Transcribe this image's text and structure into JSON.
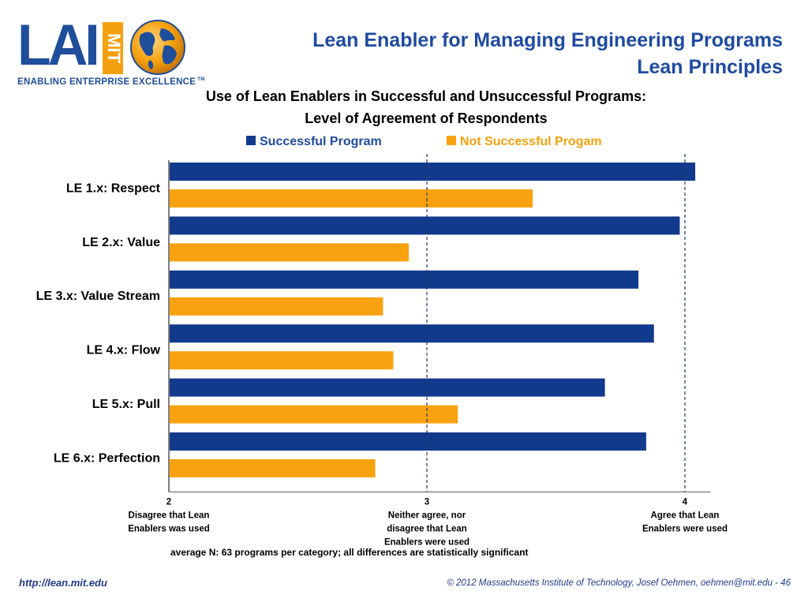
{
  "header": {
    "title_line1": "Lean Enabler for Managing Engineering Programs",
    "title_line2": "Lean Principles"
  },
  "logo": {
    "letters": "LAI",
    "mit": "MIT",
    "tagline": "ENABLING ENTERPRISE EXCELLENCE",
    "trademark": "TM"
  },
  "footer": {
    "url": "http://lean.mit.edu",
    "copyright": "© 2012 Massachusetts Institute of Technology, Josef Oehmen, oehmen@mit.edu - 46"
  },
  "colors": {
    "successful": "#123a8c",
    "not_successful": "#f9a20f",
    "title": "#1f4ba0"
  },
  "chart_data": {
    "type": "bar",
    "orientation": "horizontal",
    "title_line1": "Use of Lean Enablers in Successful and Unsuccessful Programs:",
    "title_line2": "Level of Agreement of Respondents",
    "categories": [
      "LE 1.x: Respect",
      "LE 2.x: Value",
      "LE 3.x: Value Stream",
      "LE 4.x: Flow",
      "LE 5.x: Pull",
      "LE 6.x: Perfection"
    ],
    "series": [
      {
        "name": "Successful Program",
        "values": [
          4.04,
          3.98,
          3.82,
          3.88,
          3.69,
          3.85
        ]
      },
      {
        "name": "Not Successful Progam",
        "values": [
          3.41,
          2.93,
          2.83,
          2.87,
          3.12,
          2.8
        ]
      }
    ],
    "xlim": [
      2,
      4.1
    ],
    "ticks": [
      {
        "value": 2,
        "label": "2",
        "desc": [
          "Disagree that Lean",
          "Enablers was used"
        ]
      },
      {
        "value": 3,
        "label": "3",
        "desc": [
          "Neither agree, nor",
          "disagree that Lean",
          "Enablers were used"
        ]
      },
      {
        "value": 4,
        "label": "4",
        "desc": [
          "Agree that Lean",
          "Enablers were used"
        ]
      }
    ],
    "reference_lines": [
      3,
      4
    ],
    "legend_position": "top",
    "note": "average N: 63 programs per category; all differences are statistically significant"
  }
}
